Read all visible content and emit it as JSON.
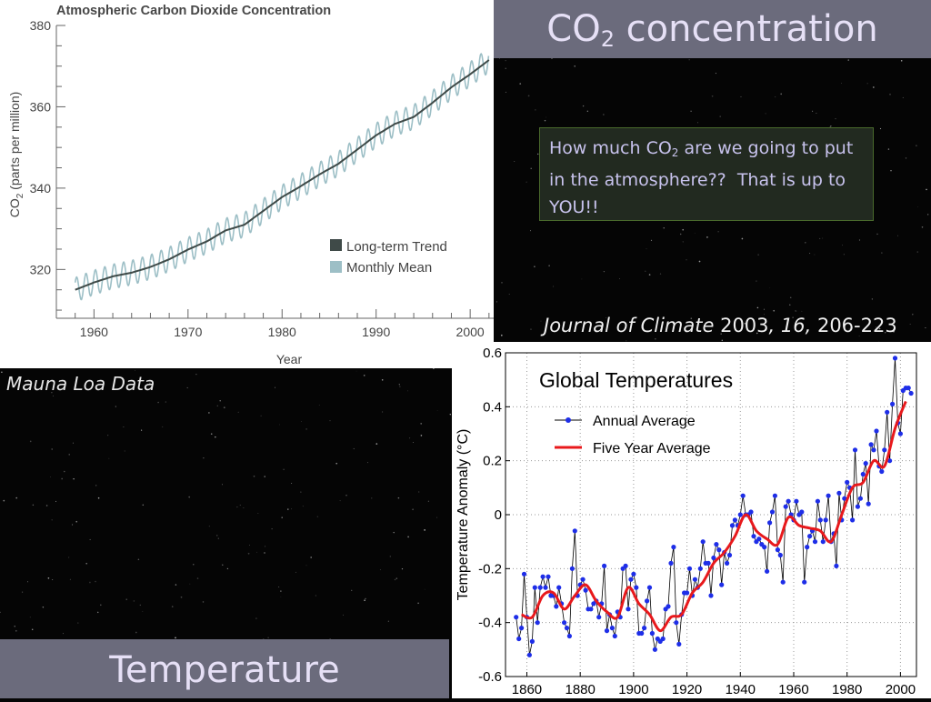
{
  "slide": {
    "co2_title_prefix": "CO",
    "co2_title_sub": "2",
    "co2_title_suffix": " concentration",
    "question_prefix": "How much CO",
    "question_sub": "2",
    "question_suffix": " are we going to put in the atmosphere??  That is up to YOU!!",
    "citation_journal": "Journal of Climate",
    "citation_year": " 2003",
    "citation_volume": ", 16,",
    "citation_pages": " 206-223",
    "mauna_label": "Mauna Loa Data",
    "temperature_title": "Temperature"
  },
  "chart_data": [
    {
      "type": "line",
      "title": "Atmospheric Carbon Dioxide Concentration",
      "xlabel": "Year",
      "ylabel_prefix": "CO",
      "ylabel_sub": "2",
      "ylabel_suffix": " (parts per million)",
      "xlim": [
        1956,
        2002.5
      ],
      "ylim": [
        308,
        380
      ],
      "xticks": [
        1960,
        1970,
        1980,
        1990,
        2000
      ],
      "yticks": [
        320,
        340,
        360,
        380
      ],
      "grid": false,
      "legend_position": "bottom-right",
      "series": [
        {
          "name": "Long-term Trend",
          "color": "#3f4a48",
          "x": [
            1958,
            1960,
            1962,
            1964,
            1966,
            1968,
            1970,
            1972,
            1974,
            1976,
            1978,
            1980,
            1982,
            1984,
            1986,
            1988,
            1990,
            1992,
            1994,
            1996,
            1998,
            2000,
            2002
          ],
          "y": [
            315.0,
            316.8,
            318.3,
            319.2,
            320.6,
            322.5,
            324.9,
            326.9,
            329.6,
            331.0,
            334.4,
            337.8,
            340.5,
            343.4,
            346.0,
            349.5,
            353.0,
            355.8,
            357.5,
            361.0,
            364.8,
            368.0,
            371.5
          ]
        },
        {
          "name": "Monthly Mean",
          "color": "#9dbfc6",
          "seasonal_amplitude_ppm": 3.0
        }
      ]
    },
    {
      "type": "line",
      "title": "Global Temperatures",
      "xlabel": "",
      "ylabel": "Temperature Anomaly (°C)",
      "xlim": [
        1852,
        2006
      ],
      "ylim": [
        -0.6,
        0.6
      ],
      "xticks": [
        1860,
        1880,
        1900,
        1920,
        1940,
        1960,
        1980,
        2000
      ],
      "yticks": [
        -0.6,
        -0.4,
        -0.2,
        0,
        0.2,
        0.4,
        0.6
      ],
      "ytick_labels": [
        "-0.6",
        "-0.4",
        "-0.2",
        "0",
        "0.2",
        "0.4",
        "0.6"
      ],
      "grid": true,
      "legend_position": "top-left",
      "series": [
        {
          "name": "Annual Average",
          "color": "#1e2ee8",
          "x": [
            1856,
            1857,
            1858,
            1859,
            1860,
            1861,
            1862,
            1863,
            1864,
            1865,
            1866,
            1867,
            1868,
            1869,
            1870,
            1871,
            1872,
            1873,
            1874,
            1875,
            1876,
            1877,
            1878,
            1879,
            1880,
            1881,
            1882,
            1883,
            1884,
            1885,
            1886,
            1887,
            1888,
            1889,
            1890,
            1891,
            1892,
            1893,
            1894,
            1895,
            1896,
            1897,
            1898,
            1899,
            1900,
            1901,
            1902,
            1903,
            1904,
            1905,
            1906,
            1907,
            1908,
            1909,
            1910,
            1911,
            1912,
            1913,
            1914,
            1915,
            1916,
            1917,
            1918,
            1919,
            1920,
            1921,
            1922,
            1923,
            1924,
            1925,
            1926,
            1927,
            1928,
            1929,
            1930,
            1931,
            1932,
            1933,
            1934,
            1935,
            1936,
            1937,
            1938,
            1939,
            1940,
            1941,
            1942,
            1943,
            1944,
            1945,
            1946,
            1947,
            1948,
            1949,
            1950,
            1951,
            1952,
            1953,
            1954,
            1955,
            1956,
            1957,
            1958,
            1959,
            1960,
            1961,
            1962,
            1963,
            1964,
            1965,
            1966,
            1967,
            1968,
            1969,
            1970,
            1971,
            1972,
            1973,
            1974,
            1975,
            1976,
            1977,
            1978,
            1979,
            1980,
            1981,
            1982,
            1983,
            1984,
            1985,
            1986,
            1987,
            1988,
            1989,
            1990,
            1991,
            1992,
            1993,
            1994,
            1995,
            1996,
            1997,
            1998,
            1999,
            2000,
            2001,
            2002,
            2003,
            2004
          ],
          "y": [
            -0.38,
            -0.46,
            -0.42,
            -0.22,
            -0.38,
            -0.52,
            -0.47,
            -0.27,
            -0.4,
            -0.27,
            -0.23,
            -0.27,
            -0.23,
            -0.3,
            -0.3,
            -0.34,
            -0.27,
            -0.33,
            -0.4,
            -0.42,
            -0.45,
            -0.2,
            -0.06,
            -0.3,
            -0.26,
            -0.24,
            -0.28,
            -0.35,
            -0.35,
            -0.33,
            -0.32,
            -0.38,
            -0.33,
            -0.19,
            -0.43,
            -0.37,
            -0.42,
            -0.45,
            -0.36,
            -0.38,
            -0.2,
            -0.19,
            -0.35,
            -0.24,
            -0.22,
            -0.27,
            -0.44,
            -0.44,
            -0.42,
            -0.32,
            -0.27,
            -0.44,
            -0.5,
            -0.46,
            -0.47,
            -0.46,
            -0.35,
            -0.34,
            -0.18,
            -0.12,
            -0.4,
            -0.48,
            -0.37,
            -0.29,
            -0.29,
            -0.2,
            -0.3,
            -0.24,
            -0.27,
            -0.2,
            -0.1,
            -0.18,
            -0.18,
            -0.3,
            -0.16,
            -0.11,
            -0.13,
            -0.26,
            -0.14,
            -0.18,
            -0.15,
            -0.04,
            -0.02,
            -0.04,
            0.0,
            0.07,
            0.0,
            0.0,
            0.01,
            -0.08,
            -0.1,
            -0.09,
            -0.11,
            -0.12,
            -0.21,
            -0.03,
            0.01,
            0.07,
            -0.13,
            -0.15,
            -0.25,
            0.03,
            0.05,
            0.0,
            -0.02,
            0.05,
            0.0,
            0.01,
            -0.25,
            -0.12,
            -0.08,
            -0.06,
            -0.1,
            0.05,
            -0.02,
            -0.1,
            -0.02,
            0.07,
            -0.1,
            -0.07,
            -0.19,
            0.08,
            -0.02,
            0.06,
            0.12,
            0.1,
            -0.02,
            0.24,
            0.03,
            0.06,
            0.15,
            0.19,
            0.04,
            0.26,
            0.24,
            0.31,
            0.18,
            0.16,
            0.24,
            0.38,
            0.2,
            0.41,
            0.58,
            0.34,
            0.3,
            0.46,
            0.47,
            0.47,
            0.45
          ]
        },
        {
          "name": "Five Year Average",
          "color": "#e8191c",
          "x": [
            1858,
            1862,
            1866,
            1870,
            1874,
            1878,
            1882,
            1886,
            1890,
            1894,
            1898,
            1902,
            1906,
            1910,
            1914,
            1918,
            1922,
            1926,
            1930,
            1934,
            1938,
            1942,
            1946,
            1950,
            1954,
            1958,
            1962,
            1966,
            1970,
            1974,
            1978,
            1982,
            1986,
            1990,
            1994,
            1998,
            2002
          ],
          "y": [
            -0.37,
            -0.38,
            -0.3,
            -0.29,
            -0.35,
            -0.3,
            -0.26,
            -0.32,
            -0.36,
            -0.38,
            -0.27,
            -0.33,
            -0.37,
            -0.43,
            -0.38,
            -0.37,
            -0.29,
            -0.25,
            -0.18,
            -0.14,
            -0.08,
            0.0,
            -0.06,
            -0.09,
            -0.11,
            -0.01,
            -0.04,
            -0.05,
            -0.06,
            -0.1,
            0.0,
            0.1,
            0.12,
            0.2,
            0.18,
            0.32,
            0.42
          ]
        }
      ]
    }
  ]
}
